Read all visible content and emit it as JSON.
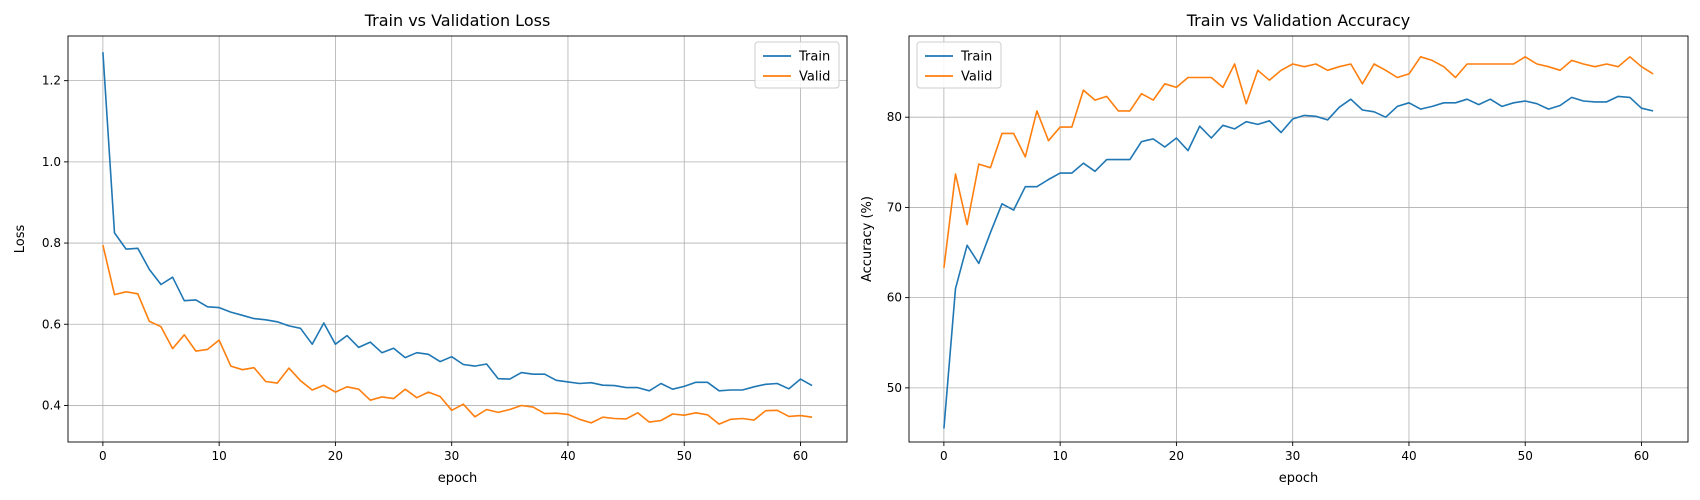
{
  "chart_data": [
    {
      "type": "line",
      "title": "Train vs Validation Loss",
      "xlabel": "epoch",
      "ylabel": "Loss",
      "xlim": [
        -3,
        64
      ],
      "ylim": [
        0.31,
        1.31
      ],
      "xticks": [
        0,
        10,
        20,
        30,
        40,
        50,
        60
      ],
      "yticks": [
        0.4,
        0.6,
        0.8,
        1.0,
        1.2
      ],
      "ytick_labels": [
        "0.4",
        "0.6",
        "0.8",
        "1.0",
        "1.2"
      ],
      "grid": true,
      "legend_position": "top-right",
      "x": [
        0,
        1,
        2,
        3,
        4,
        5,
        6,
        7,
        8,
        9,
        10,
        11,
        12,
        13,
        14,
        15,
        16,
        17,
        18,
        19,
        20,
        21,
        22,
        23,
        24,
        25,
        26,
        27,
        28,
        29,
        30,
        31,
        32,
        33,
        34,
        35,
        36,
        37,
        38,
        39,
        40,
        41,
        42,
        43,
        44,
        45,
        46,
        47,
        48,
        49,
        50,
        51,
        52,
        53,
        54,
        55,
        56,
        57,
        58,
        59,
        60,
        61
      ],
      "series": [
        {
          "name": "Train",
          "color": "#1f77b4",
          "values": [
            1.27,
            0.825,
            0.785,
            0.787,
            0.735,
            0.698,
            0.716,
            0.658,
            0.66,
            0.643,
            0.641,
            0.63,
            0.622,
            0.614,
            0.611,
            0.606,
            0.596,
            0.59,
            0.551,
            0.603,
            0.551,
            0.572,
            0.543,
            0.556,
            0.53,
            0.541,
            0.518,
            0.53,
            0.526,
            0.508,
            0.52,
            0.501,
            0.497,
            0.502,
            0.466,
            0.465,
            0.481,
            0.477,
            0.477,
            0.462,
            0.458,
            0.454,
            0.456,
            0.45,
            0.449,
            0.444,
            0.444,
            0.436,
            0.454,
            0.44,
            0.447,
            0.457,
            0.457,
            0.436,
            0.438,
            0.438,
            0.446,
            0.452,
            0.454,
            0.441,
            0.465,
            0.449
          ]
        },
        {
          "name": "Valid",
          "color": "#ff7f0e",
          "values": [
            0.795,
            0.673,
            0.68,
            0.675,
            0.607,
            0.594,
            0.54,
            0.574,
            0.534,
            0.538,
            0.561,
            0.497,
            0.488,
            0.493,
            0.459,
            0.455,
            0.492,
            0.461,
            0.438,
            0.45,
            0.433,
            0.446,
            0.44,
            0.413,
            0.421,
            0.417,
            0.44,
            0.419,
            0.433,
            0.422,
            0.388,
            0.403,
            0.372,
            0.39,
            0.383,
            0.39,
            0.4,
            0.396,
            0.38,
            0.381,
            0.378,
            0.366,
            0.357,
            0.371,
            0.368,
            0.367,
            0.382,
            0.359,
            0.363,
            0.379,
            0.376,
            0.382,
            0.377,
            0.354,
            0.366,
            0.368,
            0.364,
            0.387,
            0.388,
            0.373,
            0.375,
            0.371
          ]
        }
      ]
    },
    {
      "type": "line",
      "title": "Train vs Validation Accuracy",
      "xlabel": "epoch",
      "ylabel": "Accuracy (%)",
      "xlim": [
        -3,
        64
      ],
      "ylim": [
        44,
        89
      ],
      "xticks": [
        0,
        10,
        20,
        30,
        40,
        50,
        60
      ],
      "yticks": [
        50,
        60,
        70,
        80
      ],
      "ytick_labels": [
        "50",
        "60",
        "70",
        "80"
      ],
      "grid": true,
      "legend_position": "top-left",
      "x": [
        0,
        1,
        2,
        3,
        4,
        5,
        6,
        7,
        8,
        9,
        10,
        11,
        12,
        13,
        14,
        15,
        16,
        17,
        18,
        19,
        20,
        21,
        22,
        23,
        24,
        25,
        26,
        27,
        28,
        29,
        30,
        31,
        32,
        33,
        34,
        35,
        36,
        37,
        38,
        39,
        40,
        41,
        42,
        43,
        44,
        45,
        46,
        47,
        48,
        49,
        50,
        51,
        52,
        53,
        54,
        55,
        56,
        57,
        58,
        59,
        60,
        61
      ],
      "series": [
        {
          "name": "Train",
          "color": "#1f77b4",
          "values": [
            45.5,
            61.0,
            65.8,
            63.8,
            67.2,
            70.4,
            69.7,
            72.3,
            72.3,
            73.1,
            73.8,
            73.8,
            74.9,
            74.0,
            75.3,
            75.3,
            75.3,
            77.3,
            77.6,
            76.7,
            77.7,
            76.3,
            79.0,
            77.7,
            79.1,
            78.7,
            79.5,
            79.2,
            79.6,
            78.3,
            79.8,
            80.2,
            80.1,
            79.7,
            81.1,
            82.0,
            80.8,
            80.6,
            80.0,
            81.2,
            81.6,
            80.9,
            81.2,
            81.6,
            81.6,
            82.0,
            81.4,
            82.0,
            81.2,
            81.6,
            81.8,
            81.5,
            80.9,
            81.3,
            82.2,
            81.8,
            81.7,
            81.7,
            82.3,
            82.2,
            81.0,
            80.7
          ]
        },
        {
          "name": "Valid",
          "color": "#ff7f0e",
          "values": [
            63.3,
            73.7,
            68.1,
            74.8,
            74.4,
            78.2,
            78.2,
            75.6,
            80.7,
            77.4,
            78.9,
            78.9,
            83.0,
            81.9,
            82.3,
            80.7,
            80.7,
            82.6,
            81.9,
            83.7,
            83.3,
            84.4,
            84.4,
            84.4,
            83.3,
            85.9,
            81.5,
            85.2,
            84.1,
            85.2,
            85.9,
            85.6,
            85.9,
            85.2,
            85.6,
            85.9,
            83.7,
            85.9,
            85.2,
            84.4,
            84.8,
            86.7,
            86.3,
            85.6,
            84.4,
            85.9,
            85.9,
            85.9,
            85.9,
            85.9,
            86.7,
            85.9,
            85.6,
            85.2,
            86.3,
            85.9,
            85.6,
            85.9,
            85.6,
            86.7,
            85.6,
            84.8
          ]
        }
      ]
    }
  ]
}
